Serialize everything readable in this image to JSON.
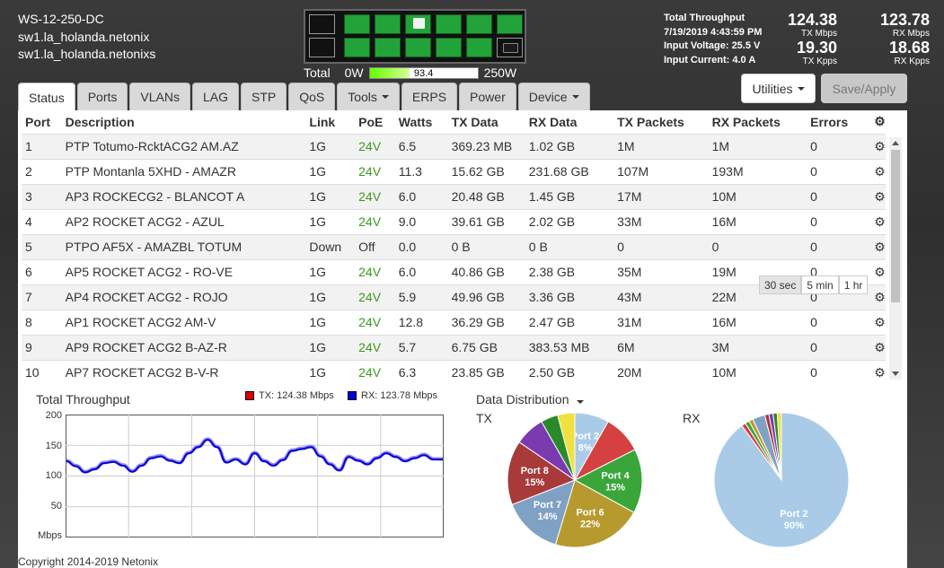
{
  "device": {
    "model": "WS-12-250-DC",
    "hostname1": "sw1.la_holanda.netonix",
    "hostname2": "sw1.la_holanda.netonixs"
  },
  "power": {
    "label": "Total",
    "min": "0W",
    "value": "93.4",
    "max": "250W",
    "fraction": 0.374
  },
  "stats": {
    "title": "Total Throughput",
    "datetime": "7/19/2019 4:43:59 PM",
    "voltage": "Input Voltage: 25.5 V",
    "current": "Input Current: 4.0 A",
    "tx_mbps": "124.38",
    "tx_mbps_unit": "TX Mbps",
    "rx_mbps": "123.78",
    "rx_mbps_unit": "RX Mbps",
    "tx_kpps": "19.30",
    "tx_kpps_unit": "TX Kpps",
    "rx_kpps": "18.68",
    "rx_kpps_unit": "RX Kpps"
  },
  "buttons": {
    "utilities": "Utilities",
    "save": "Save/Apply"
  },
  "tabs": [
    {
      "label": "Status",
      "active": true
    },
    {
      "label": "Ports"
    },
    {
      "label": "VLANs"
    },
    {
      "label": "LAG"
    },
    {
      "label": "STP"
    },
    {
      "label": "QoS"
    },
    {
      "label": "Tools",
      "dropdown": true
    },
    {
      "label": "ERPS"
    },
    {
      "label": "Power"
    },
    {
      "label": "Device",
      "dropdown": true
    }
  ],
  "table": {
    "headers": [
      "Port",
      "Description",
      "Link",
      "PoE",
      "Watts",
      "TX Data",
      "RX Data",
      "TX Packets",
      "RX Packets",
      "Errors"
    ],
    "rows": [
      [
        "1",
        "PTP Totumo-RcktACG2 AM.AZ",
        "1G",
        "24V",
        "6.5",
        "369.23 MB",
        "1.02 GB",
        "1M",
        "1M",
        "0"
      ],
      [
        "2",
        "PTP Montanla 5XHD - AMAZR",
        "1G",
        "24V",
        "11.3",
        "15.62 GB",
        "231.68 GB",
        "107M",
        "193M",
        "0"
      ],
      [
        "3",
        "AP3 ROCKECG2 - BLANCOT A",
        "1G",
        "24V",
        "6.0",
        "20.48 GB",
        "1.45 GB",
        "17M",
        "10M",
        "0"
      ],
      [
        "4",
        "AP2 ROCKET ACG2 - AZUL",
        "1G",
        "24V",
        "9.0",
        "39.61 GB",
        "2.02 GB",
        "33M",
        "16M",
        "0"
      ],
      [
        "5",
        "PTPO AF5X - AMAZBL TOTUM",
        "Down",
        "Off",
        "0.0",
        "0 B",
        "0 B",
        "0",
        "0",
        "0"
      ],
      [
        "6",
        "AP5 ROCKET ACG2 - RO-VE",
        "1G",
        "24V",
        "6.0",
        "40.86 GB",
        "2.38 GB",
        "35M",
        "19M",
        "0"
      ],
      [
        "7",
        "AP4 ROCKET ACG2 - ROJO",
        "1G",
        "24V",
        "5.9",
        "49.96 GB",
        "3.36 GB",
        "43M",
        "22M",
        "0"
      ],
      [
        "8",
        "AP1 ROCKET ACG2 AM-V",
        "1G",
        "24V",
        "12.8",
        "36.29 GB",
        "2.47 GB",
        "31M",
        "16M",
        "0"
      ],
      [
        "9",
        "AP9 ROCKET ACG2 B-AZ-R",
        "1G",
        "24V",
        "5.7",
        "6.75 GB",
        "383.53 MB",
        "6M",
        "3M",
        "0"
      ],
      [
        "10",
        "AP7 ROCKET ACG2 B-V-R",
        "1G",
        "24V",
        "6.3",
        "23.85 GB",
        "2.50 GB",
        "20M",
        "10M",
        "0"
      ]
    ]
  },
  "throughput": {
    "title": "Total Throughput",
    "tx_legend": "TX: 124.38 Mbps",
    "rx_legend": "RX: 123.78 Mbps",
    "tx_color": "#dd0000",
    "rx_color": "#0000dd",
    "y_ticks": [
      "200",
      "150",
      "100",
      "50"
    ],
    "y_unit": "Mbps"
  },
  "distribution": {
    "title": "Data Distribution",
    "tx_label": "TX",
    "rx_label": "RX",
    "time_buttons": [
      "30 sec",
      "5 min",
      "1 hr"
    ]
  },
  "chart_data": [
    {
      "type": "line",
      "title": "Total Throughput",
      "ylabel": "Mbps",
      "ylim": [
        0,
        200
      ],
      "series": [
        {
          "name": "TX: 124.38 Mbps",
          "color": "#dd0000",
          "values": [
            125,
            117,
            107,
            112,
            122,
            124,
            118,
            108,
            118,
            130,
            133,
            126,
            122,
            138,
            148,
            160,
            148,
            123,
            128,
            120,
            138,
            125,
            118,
            127,
            142,
            145,
            148,
            133,
            120,
            110,
            132,
            126,
            120,
            130,
            138,
            132,
            125,
            130,
            135,
            128,
            128
          ]
        },
        {
          "name": "RX: 123.78 Mbps",
          "color": "#0000dd",
          "values": [
            124,
            116,
            106,
            111,
            121,
            123,
            117,
            107,
            117,
            129,
            132,
            125,
            121,
            137,
            147,
            159,
            147,
            122,
            127,
            119,
            137,
            124,
            117,
            126,
            141,
            144,
            147,
            132,
            119,
            109,
            131,
            125,
            119,
            129,
            137,
            131,
            124,
            129,
            134,
            127,
            127
          ]
        }
      ]
    },
    {
      "type": "pie",
      "title": "TX",
      "slices": [
        {
          "label": "Port 2",
          "value": 8,
          "color": "#a9cbe8"
        },
        {
          "label": "",
          "value": 9,
          "color": "#d54040"
        },
        {
          "label": "Port 4",
          "value": 15,
          "color": "#3aa63a"
        },
        {
          "label": "Port 6",
          "value": 21,
          "color": "#b69a2e"
        },
        {
          "label": "Port 7",
          "value": 14,
          "color": "#7fa2c4"
        },
        {
          "label": "Port 8",
          "value": 15,
          "color": "#a83a3a"
        },
        {
          "label": "",
          "value": 7,
          "color": "#7a3ab0"
        },
        {
          "label": "",
          "value": 4,
          "color": "#2a8a2a"
        },
        {
          "label": "",
          "value": 4,
          "color": "#f0e040"
        }
      ]
    },
    {
      "type": "pie",
      "title": "RX",
      "slices": [
        {
          "label": "Port 2",
          "value": 90,
          "color": "#a9cbe8"
        },
        {
          "label": "",
          "value": 1,
          "color": "#d54040"
        },
        {
          "label": "",
          "value": 1,
          "color": "#3aa63a"
        },
        {
          "label": "",
          "value": 1,
          "color": "#b69a2e"
        },
        {
          "label": "",
          "value": 3,
          "color": "#7fa2c4"
        },
        {
          "label": "",
          "value": 1,
          "color": "#a83a3a"
        },
        {
          "label": "",
          "value": 1,
          "color": "#7a3ab0"
        },
        {
          "label": "",
          "value": 1,
          "color": "#2a8a2a"
        },
        {
          "label": "",
          "value": 1,
          "color": "#f0e040"
        }
      ]
    }
  ],
  "footer": {
    "copyright": "Copyright 2014-2019 Netonix"
  }
}
